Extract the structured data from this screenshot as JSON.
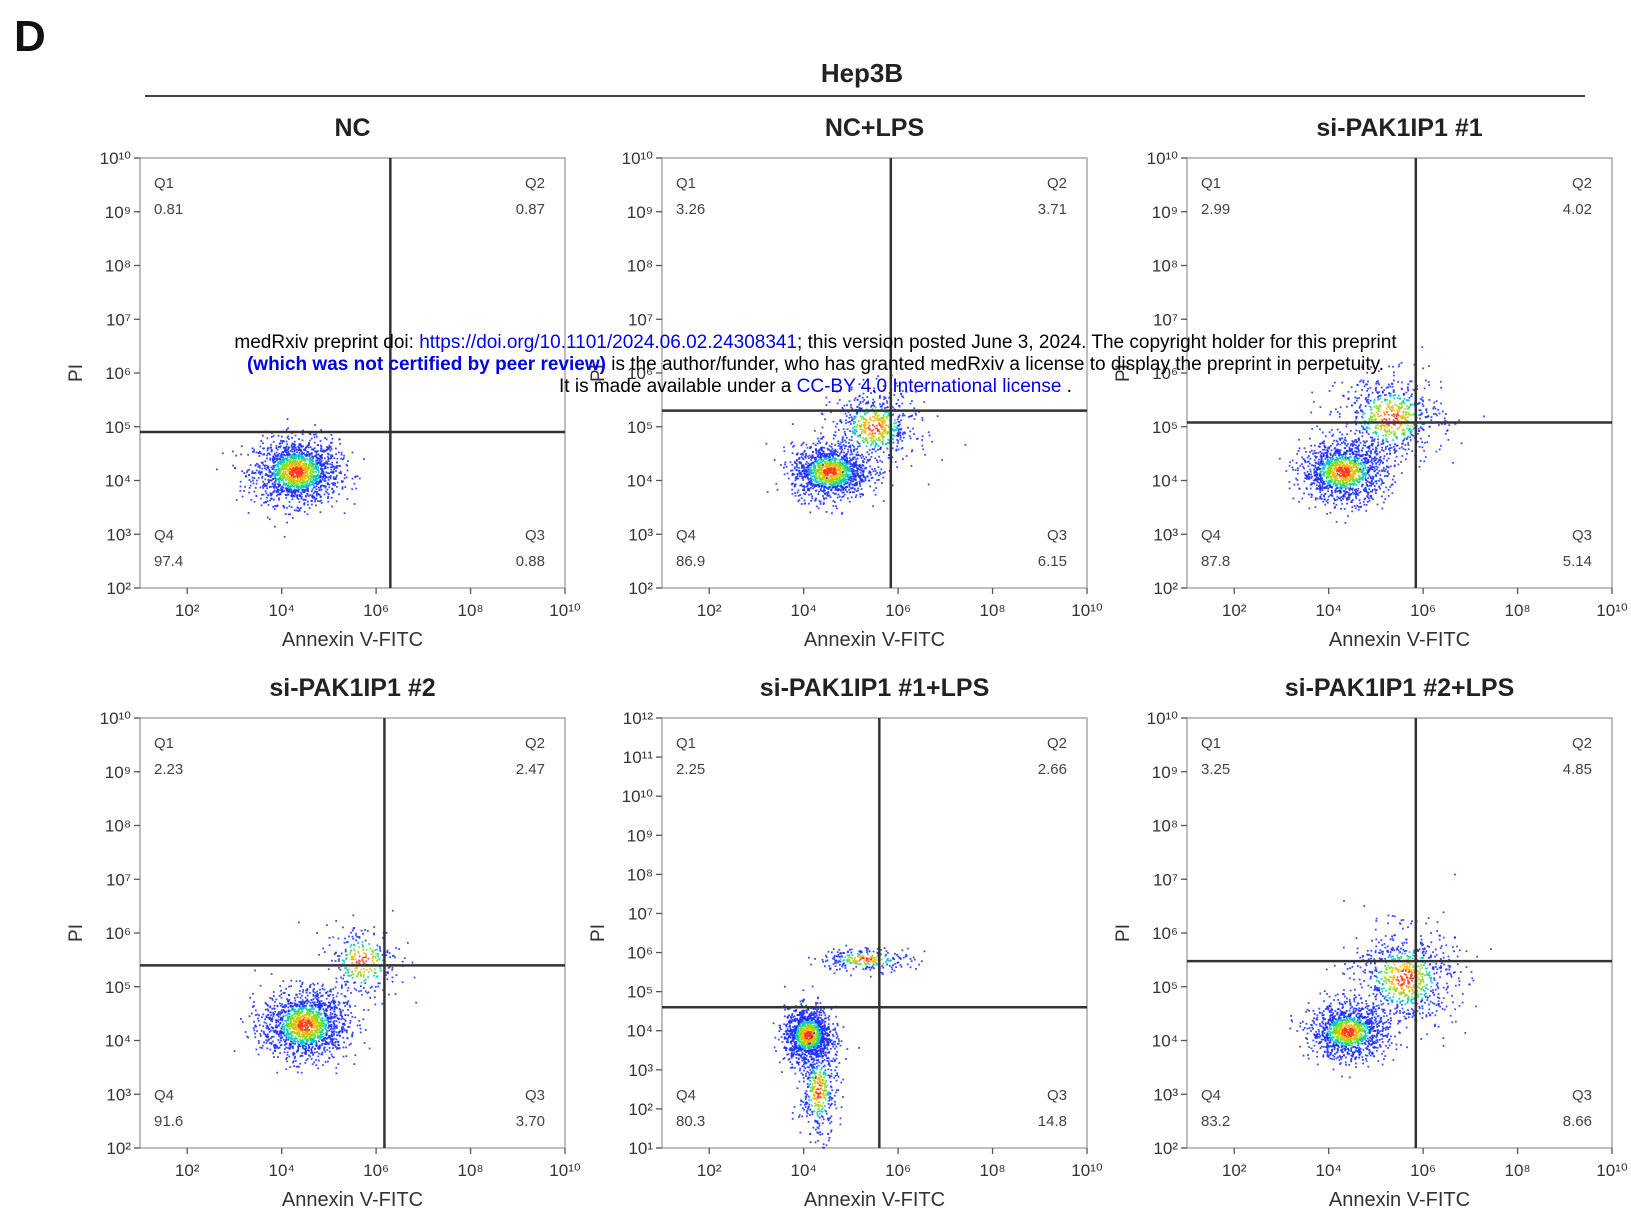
{
  "figure": {
    "panel_letter": "D",
    "group_title": "Hep3B"
  },
  "watermark": {
    "line1_prefix": "medRxiv preprint doi: ",
    "line1_link": "https://doi.org/10.1101/2024.06.02.24308341",
    "line1_suffix": "; this version posted June 3, 2024. The copyright holder for this preprint",
    "line2_bold": "(which was not certified by peer review)",
    "line2_suffix": " is the author/funder, who has granted medRxiv a license to display the preprint in perpetuity.",
    "line3_prefix": "It is made available under a ",
    "line3_link": "CC-BY 4.0 International license",
    "line3_suffix": " ."
  },
  "colors": {
    "axis": "#555555",
    "gate_line": "#333333",
    "text": "#222222",
    "density_low": "#1a2bff",
    "density_mid": "#00c8c8",
    "density_high": "#ff3a1a"
  },
  "chart_data": [
    {
      "type": "scatter",
      "title": "NC",
      "xlabel": "Annexin V-FITC",
      "ylabel": "PI",
      "x_scale": "log10",
      "y_scale": "log10",
      "xlim": [
        10,
        10000000000
      ],
      "ylim": [
        100,
        10000000000
      ],
      "x_ticks": [
        "10²",
        "10⁴",
        "10⁶",
        "10⁸",
        "10¹⁰"
      ],
      "y_ticks": [
        "10²",
        "10³",
        "10⁴",
        "10⁵",
        "10⁶",
        "10⁷",
        "10⁸",
        "10⁹",
        "10¹⁰"
      ],
      "gate": {
        "x": 2000000,
        "y": 80000
      },
      "quadrants": [
        {
          "label": "Q1",
          "value": "0.81",
          "position": "top-left"
        },
        {
          "label": "Q2",
          "value": "0.87",
          "position": "top-right"
        },
        {
          "label": "Q3",
          "value": "0.88",
          "position": "bottom-right"
        },
        {
          "label": "Q4",
          "value": "97.4",
          "position": "bottom-left"
        }
      ],
      "populations": [
        {
          "cx": 20000,
          "cy": 15000,
          "sx": 0.45,
          "sy": 0.3,
          "n": 1600
        }
      ]
    },
    {
      "type": "scatter",
      "title": "NC+LPS",
      "xlabel": "Annexin V-FITC",
      "ylabel": "PI",
      "x_scale": "log10",
      "y_scale": "log10",
      "xlim": [
        10,
        10000000000
      ],
      "ylim": [
        100,
        10000000000
      ],
      "x_ticks": [
        "10²",
        "10⁴",
        "10⁶",
        "10⁸",
        "10¹⁰"
      ],
      "y_ticks": [
        "10²",
        "10³",
        "10⁴",
        "10⁵",
        "10⁶",
        "10⁷",
        "10⁸",
        "10⁹",
        "10¹⁰"
      ],
      "gate": {
        "x": 700000,
        "y": 200000
      },
      "quadrants": [
        {
          "label": "Q1",
          "value": "3.26",
          "position": "top-left"
        },
        {
          "label": "Q2",
          "value": "3.71",
          "position": "top-right"
        },
        {
          "label": "Q3",
          "value": "6.15",
          "position": "bottom-right"
        },
        {
          "label": "Q4",
          "value": "86.9",
          "position": "bottom-left"
        }
      ],
      "populations": [
        {
          "cx": 35000,
          "cy": 15000,
          "sx": 0.4,
          "sy": 0.25,
          "n": 1300
        },
        {
          "cx": 300000,
          "cy": 100000,
          "sx": 0.45,
          "sy": 0.35,
          "n": 600
        }
      ]
    },
    {
      "type": "scatter",
      "title": "si-PAK1IP1 #1",
      "xlabel": "Annexin V-FITC",
      "ylabel": "PI",
      "x_scale": "log10",
      "y_scale": "log10",
      "xlim": [
        10,
        10000000000
      ],
      "ylim": [
        100,
        10000000000
      ],
      "x_ticks": [
        "10²",
        "10⁴",
        "10⁶",
        "10⁸",
        "10¹⁰"
      ],
      "y_ticks": [
        "10²",
        "10³",
        "10⁴",
        "10⁵",
        "10⁶",
        "10⁷",
        "10⁸",
        "10⁹",
        "10¹⁰"
      ],
      "gate": {
        "x": 700000,
        "y": 120000
      },
      "quadrants": [
        {
          "label": "Q1",
          "value": "2.99",
          "position": "top-left"
        },
        {
          "label": "Q2",
          "value": "4.02",
          "position": "top-right"
        },
        {
          "label": "Q3",
          "value": "5.14",
          "position": "bottom-right"
        },
        {
          "label": "Q4",
          "value": "87.8",
          "position": "bottom-left"
        }
      ],
      "populations": [
        {
          "cx": 20000,
          "cy": 15000,
          "sx": 0.45,
          "sy": 0.28,
          "n": 1300
        },
        {
          "cx": 200000,
          "cy": 150000,
          "sx": 0.55,
          "sy": 0.4,
          "n": 650
        }
      ]
    },
    {
      "type": "scatter",
      "title": "si-PAK1IP1 #2",
      "xlabel": "Annexin V-FITC",
      "ylabel": "PI",
      "x_scale": "log10",
      "y_scale": "log10",
      "xlim": [
        10,
        10000000000
      ],
      "ylim": [
        100,
        10000000000
      ],
      "x_ticks": [
        "10²",
        "10⁴",
        "10⁶",
        "10⁸",
        "10¹⁰"
      ],
      "y_ticks": [
        "10²",
        "10³",
        "10⁴",
        "10⁵",
        "10⁶",
        "10⁷",
        "10⁸",
        "10⁹",
        "10¹⁰"
      ],
      "gate": {
        "x": 1500000,
        "y": 250000
      },
      "quadrants": [
        {
          "label": "Q1",
          "value": "2.23",
          "position": "top-left"
        },
        {
          "label": "Q2",
          "value": "2.47",
          "position": "top-right"
        },
        {
          "label": "Q3",
          "value": "3.70",
          "position": "bottom-right"
        },
        {
          "label": "Q4",
          "value": "91.6",
          "position": "bottom-left"
        }
      ],
      "populations": [
        {
          "cx": 30000,
          "cy": 20000,
          "sx": 0.45,
          "sy": 0.32,
          "n": 1500
        },
        {
          "cx": 500000,
          "cy": 300000,
          "sx": 0.4,
          "sy": 0.35,
          "n": 300
        }
      ]
    },
    {
      "type": "scatter",
      "title": "si-PAK1IP1 #1+LPS",
      "xlabel": "Annexin V-FITC",
      "ylabel": "PI",
      "x_scale": "log10",
      "y_scale": "log10",
      "xlim": [
        10,
        10000000000
      ],
      "ylim": [
        10,
        1000000000000
      ],
      "x_ticks": [
        "10²",
        "10⁴",
        "10⁶",
        "10⁸",
        "10¹⁰"
      ],
      "y_ticks": [
        "10¹",
        "10²",
        "10³",
        "10⁴",
        "10⁵",
        "10⁶",
        "10⁷",
        "10⁸",
        "10⁹",
        "10¹⁰",
        "10¹¹",
        "10¹²"
      ],
      "gate": {
        "x": 400000,
        "y": 40000
      },
      "quadrants": [
        {
          "label": "Q1",
          "value": "2.25",
          "position": "top-left"
        },
        {
          "label": "Q2",
          "value": "2.66",
          "position": "top-right"
        },
        {
          "label": "Q3",
          "value": "14.8",
          "position": "bottom-right"
        },
        {
          "label": "Q4",
          "value": "80.3",
          "position": "bottom-left"
        }
      ],
      "populations": [
        {
          "cx": 12000,
          "cy": 8000,
          "sx": 0.25,
          "sy": 0.35,
          "n": 1300
        },
        {
          "cx": 20000,
          "cy": 300,
          "sx": 0.2,
          "sy": 0.6,
          "n": 400
        },
        {
          "cx": 200000,
          "cy": 700000,
          "sx": 0.5,
          "sy": 0.15,
          "n": 250
        }
      ]
    },
    {
      "type": "scatter",
      "title": "si-PAK1IP1 #2+LPS",
      "xlabel": "Annexin V-FITC",
      "ylabel": "PI",
      "x_scale": "log10",
      "y_scale": "log10",
      "xlim": [
        10,
        10000000000
      ],
      "ylim": [
        100,
        10000000000
      ],
      "x_ticks": [
        "10²",
        "10⁴",
        "10⁶",
        "10⁸",
        "10¹⁰"
      ],
      "y_ticks": [
        "10²",
        "10³",
        "10⁴",
        "10⁵",
        "10⁶",
        "10⁷",
        "10⁸",
        "10⁹",
        "10¹⁰"
      ],
      "gate": {
        "x": 700000,
        "y": 300000
      },
      "quadrants": [
        {
          "label": "Q1",
          "value": "3.25",
          "position": "top-left"
        },
        {
          "label": "Q2",
          "value": "4.85",
          "position": "top-right"
        },
        {
          "label": "Q3",
          "value": "8.66",
          "position": "bottom-right"
        },
        {
          "label": "Q4",
          "value": "83.2",
          "position": "bottom-left"
        }
      ],
      "populations": [
        {
          "cx": 25000,
          "cy": 15000,
          "sx": 0.4,
          "sy": 0.25,
          "n": 1200
        },
        {
          "cx": 400000,
          "cy": 150000,
          "sx": 0.55,
          "sy": 0.45,
          "n": 800
        }
      ]
    }
  ]
}
